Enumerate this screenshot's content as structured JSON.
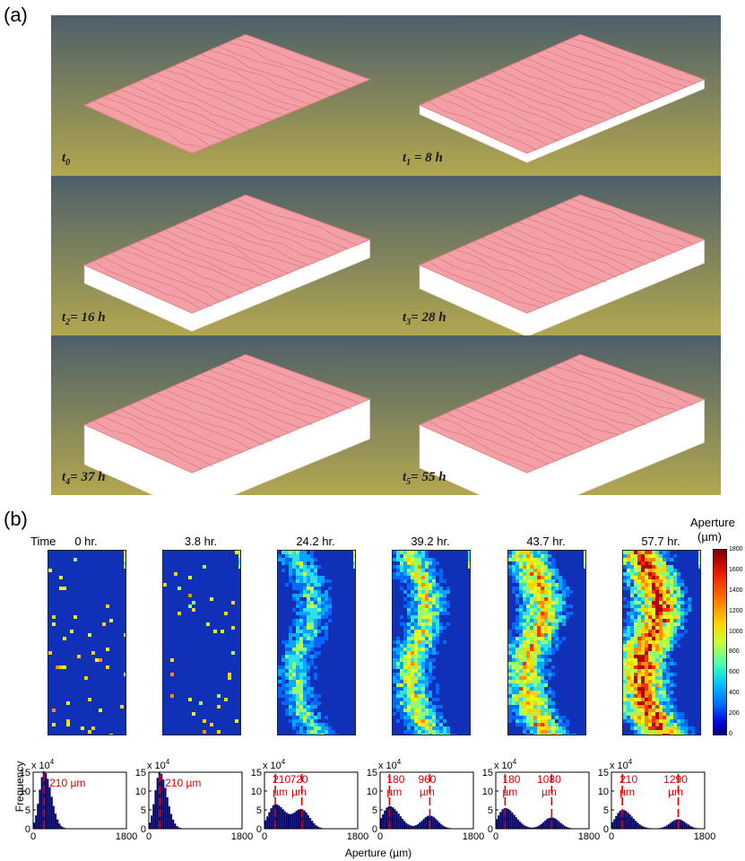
{
  "panel_a": {
    "label": "(a)",
    "tiles": [
      {
        "sym": "t",
        "sub": "0",
        "rest": ""
      },
      {
        "sym": "t",
        "sub": "1",
        "rest": " = 8 h"
      },
      {
        "sym": "t",
        "sub": "2",
        "rest": "= 16 h"
      },
      {
        "sym": "t",
        "sub": "3",
        "rest": "= 28 h"
      },
      {
        "sym": "t",
        "sub": "4",
        "rest": "= 37 h"
      },
      {
        "sym": "t",
        "sub": "5",
        "rest": "= 55 h"
      }
    ],
    "colors": {
      "surface": "#f2a0a6",
      "dissolved": "#ffffff",
      "bg_top": "#4d5f6a",
      "bg_bottom": "#b2a74f"
    }
  },
  "panel_b": {
    "label": "(b)",
    "time_prefix": "Time",
    "times": [
      "0 hr.",
      "3.8 hr.",
      "24.2 hr.",
      "39.2 hr.",
      "43.7 hr.",
      "57.7 hr."
    ],
    "colorbar": {
      "title": "Aperture",
      "unit": "(µm)",
      "ticks": [
        "1800",
        "1600",
        "1400",
        "1200",
        "1000",
        "800",
        "600",
        "400",
        "200",
        "0"
      ]
    },
    "histograms": {
      "ylabel": "Frequency",
      "xlabel": "Aperture (µm)",
      "y_multiplier": "x 10",
      "y_exponent": "4",
      "y_ticks": [
        "15",
        "10",
        "5",
        "0"
      ],
      "x_ticks": [
        "0",
        "1800"
      ],
      "peak_labels": [
        [
          "210 µm"
        ],
        [
          "210 µm"
        ],
        [
          "210",
          "µm",
          "720",
          "µm"
        ],
        [
          "180",
          "µm",
          "960",
          "µm"
        ],
        [
          "180",
          "µm",
          "1080",
          "µm"
        ],
        [
          "210",
          "µm",
          "1290",
          "µm"
        ]
      ]
    }
  },
  "chart_data": [
    {
      "type": "bar",
      "title": "0 hr.",
      "xlabel": "Aperture (µm)",
      "ylabel": "Frequency",
      "xlim": [
        0,
        1800
      ],
      "ylim": [
        0,
        15
      ],
      "y_units": "x 10^4",
      "peaks_um": [
        210
      ],
      "peak_heights": [
        15.2
      ]
    },
    {
      "type": "bar",
      "title": "3.8 hr.",
      "xlabel": "Aperture (µm)",
      "ylabel": "Frequency",
      "xlim": [
        0,
        1800
      ],
      "ylim": [
        0,
        15
      ],
      "y_units": "x 10^4",
      "peaks_um": [
        210
      ],
      "peak_heights": [
        15.0
      ]
    },
    {
      "type": "bar",
      "title": "24.2 hr.",
      "xlabel": "Aperture (µm)",
      "ylabel": "Frequency",
      "xlim": [
        0,
        1800
      ],
      "ylim": [
        0,
        15
      ],
      "y_units": "x 10^4",
      "peaks_um": [
        210,
        720
      ],
      "peak_heights": [
        6.5,
        5.0
      ]
    },
    {
      "type": "bar",
      "title": "39.2 hr.",
      "xlabel": "Aperture (µm)",
      "ylabel": "Frequency",
      "xlim": [
        0,
        1800
      ],
      "ylim": [
        0,
        15
      ],
      "y_units": "x 10^4",
      "peaks_um": [
        180,
        960
      ],
      "peak_heights": [
        6.0,
        3.5
      ]
    },
    {
      "type": "bar",
      "title": "43.7 hr.",
      "xlabel": "Aperture (µm)",
      "ylabel": "Frequency",
      "xlim": [
        0,
        1800
      ],
      "ylim": [
        0,
        15
      ],
      "y_units": "x 10^4",
      "peaks_um": [
        180,
        1080
      ],
      "peak_heights": [
        5.5,
        3.0
      ]
    },
    {
      "type": "bar",
      "title": "57.7 hr.",
      "xlabel": "Aperture (µm)",
      "ylabel": "Frequency",
      "xlim": [
        0,
        1800
      ],
      "ylim": [
        0,
        15
      ],
      "y_units": "x 10^4",
      "peaks_um": [
        210,
        1290
      ],
      "peak_heights": [
        5.0,
        2.5
      ]
    }
  ]
}
